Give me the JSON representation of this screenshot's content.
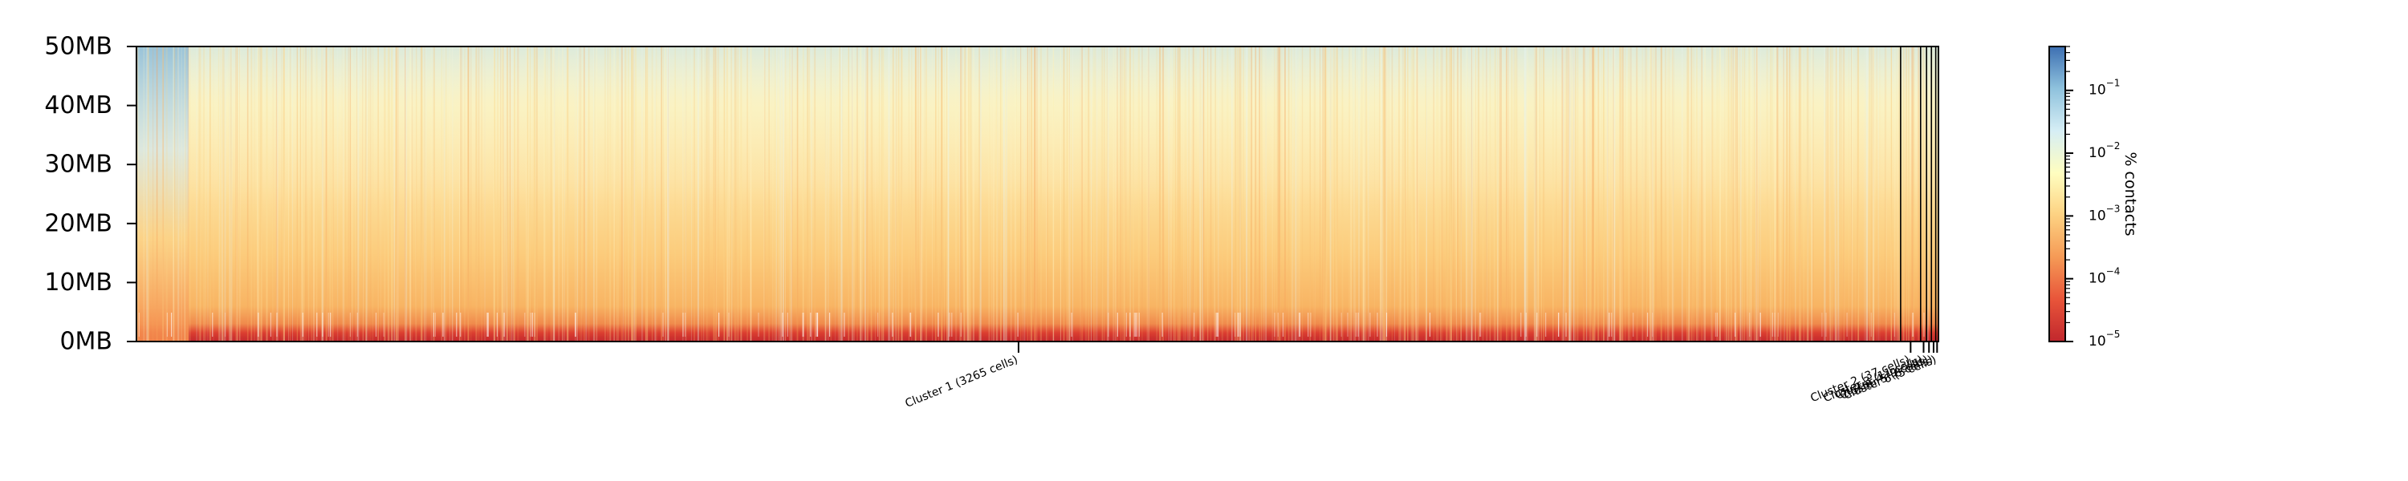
{
  "chart_data": {
    "type": "heatmap",
    "title": "",
    "xlabel": "",
    "ylabel": "",
    "y_tick_labels": [
      "0MB",
      "10MB",
      "20MB",
      "30MB",
      "40MB",
      "50MB"
    ],
    "y_ticks_mb": [
      0,
      10,
      20,
      30,
      40,
      50
    ],
    "ylim_mb": [
      0,
      50
    ],
    "clusters": [
      {
        "label": "Cluster 1 (3265 cells)",
        "cells": 3265
      },
      {
        "label": "Cluster 2 (37 cells)",
        "cells": 37
      },
      {
        "label": "Cluster 3 (11 cells)",
        "cells": 11
      },
      {
        "label": "Cluster 4 (9 cells)",
        "cells": 9
      },
      {
        "label": "Cluster 5 (8 cells)",
        "cells": 8
      },
      {
        "label": "Cluster 6 (5 cells)",
        "cells": 5
      }
    ],
    "colorbar": {
      "label": "% contacts",
      "scale": "log",
      "tick_labels": [
        {
          "base": "10",
          "exp": "−5"
        },
        {
          "base": "10",
          "exp": "−4"
        },
        {
          "base": "10",
          "exp": "−3"
        },
        {
          "base": "10",
          "exp": "−2"
        },
        {
          "base": "10",
          "exp": "−1"
        }
      ],
      "tick_exponents": [
        -5,
        -4,
        -3,
        -2,
        -1
      ],
      "range": [
        1e-05,
        0.5
      ],
      "colormap": "RdYlBu",
      "colors": [
        "#c1272d",
        "#e8553a",
        "#f59a56",
        "#fdd282",
        "#fffec0",
        "#d6eef5",
        "#8fc2dd",
        "#3d6fb2"
      ]
    }
  }
}
